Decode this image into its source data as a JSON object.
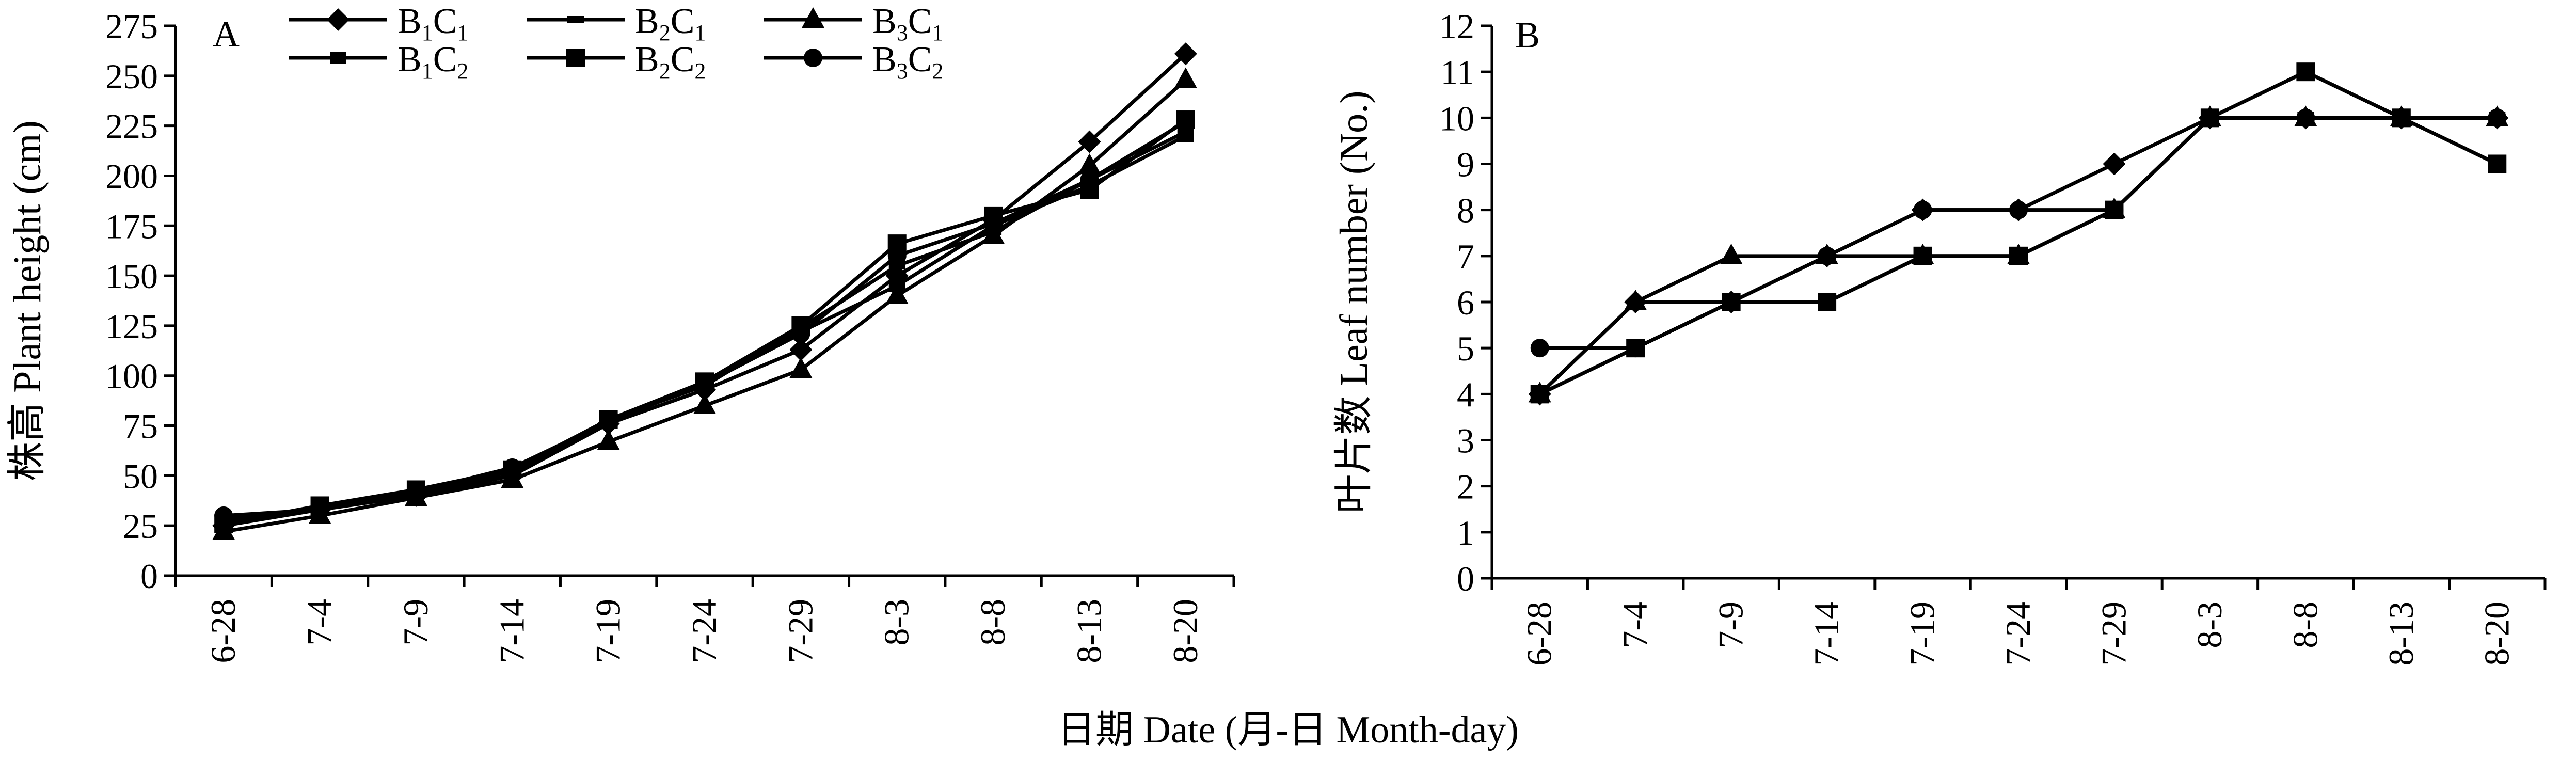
{
  "x_axis_title": "日期 Date (月-日 Month-day)",
  "chart_data": [
    {
      "type": "line",
      "panel_label": "A",
      "ylabel": "株高 Plant height (cm)",
      "xlabel": "",
      "categories": [
        "6-28",
        "7-4",
        "7-9",
        "7-14",
        "7-19",
        "7-24",
        "7-29",
        "8-3",
        "8-8",
        "8-13",
        "8-20"
      ],
      "ylim": [
        0,
        275
      ],
      "yticks": [
        0,
        25,
        50,
        75,
        100,
        125,
        150,
        175,
        200,
        225,
        250,
        275
      ],
      "legend_position": "top",
      "series": [
        {
          "name": "B1C1",
          "sub1": "1",
          "sub2": "1",
          "marker": "diamond",
          "values": [
            25,
            33,
            40,
            50,
            76,
            93,
            113,
            150,
            178,
            217,
            261
          ]
        },
        {
          "name": "B2C1",
          "sub1": "2",
          "sub2": "1",
          "marker": "dash",
          "values": [
            28,
            34,
            42,
            50,
            78,
            95,
            124,
            155,
            172,
            198,
            222
          ]
        },
        {
          "name": "B3C1",
          "sub1": "3",
          "sub2": "1",
          "marker": "triangle",
          "values": [
            22,
            30,
            39,
            48,
            67,
            85,
            103,
            140,
            170,
            205,
            248
          ]
        },
        {
          "name": "B1C2",
          "sub1": "1",
          "sub2": "2",
          "marker": "bar",
          "values": [
            27,
            34,
            42,
            52,
            77,
            96,
            122,
            145,
            175,
            195,
            220
          ]
        },
        {
          "name": "B2C2",
          "sub1": "2",
          "sub2": "2",
          "marker": "square",
          "values": [
            26,
            35,
            43,
            53,
            78,
            97,
            125,
            166,
            180,
            193,
            228
          ]
        },
        {
          "name": "B3C2",
          "sub1": "3",
          "sub2": "2",
          "marker": "circle",
          "values": [
            30,
            33,
            42,
            54,
            77,
            96,
            121,
            160,
            176,
            198,
            227
          ]
        }
      ]
    },
    {
      "type": "line",
      "panel_label": "B",
      "ylabel": "叶片数 Leaf number (No.)",
      "xlabel": "",
      "categories": [
        "6-28",
        "7-4",
        "7-9",
        "7-14",
        "7-19",
        "7-24",
        "7-29",
        "8-3",
        "8-8",
        "8-13",
        "8-20"
      ],
      "ylim": [
        0,
        12
      ],
      "yticks": [
        0,
        1,
        2,
        3,
        4,
        5,
        6,
        7,
        8,
        9,
        10,
        11,
        12
      ],
      "series": [
        {
          "name": "B1C1",
          "marker": "diamond",
          "values": [
            4,
            6,
            6,
            7,
            8,
            8,
            9,
            10,
            10,
            10,
            10
          ]
        },
        {
          "name": "B2C1",
          "marker": "dash",
          "values": [
            4,
            5,
            6,
            6,
            7,
            7,
            8,
            10,
            11,
            10,
            9
          ]
        },
        {
          "name": "B3C1",
          "marker": "triangle",
          "values": [
            4,
            6,
            7,
            7,
            7,
            7,
            8,
            10,
            10,
            10,
            10
          ]
        },
        {
          "name": "B1C2",
          "marker": "bar",
          "values": [
            4,
            5,
            6,
            6,
            7,
            7,
            8,
            10,
            10,
            10,
            10
          ]
        },
        {
          "name": "B2C2",
          "marker": "square",
          "values": [
            4,
            5,
            6,
            6,
            7,
            7,
            8,
            10,
            11,
            10,
            9
          ]
        },
        {
          "name": "B3C2",
          "marker": "circle",
          "values": [
            5,
            5,
            6,
            7,
            8,
            8,
            8,
            10,
            10,
            10,
            10
          ]
        }
      ]
    }
  ]
}
